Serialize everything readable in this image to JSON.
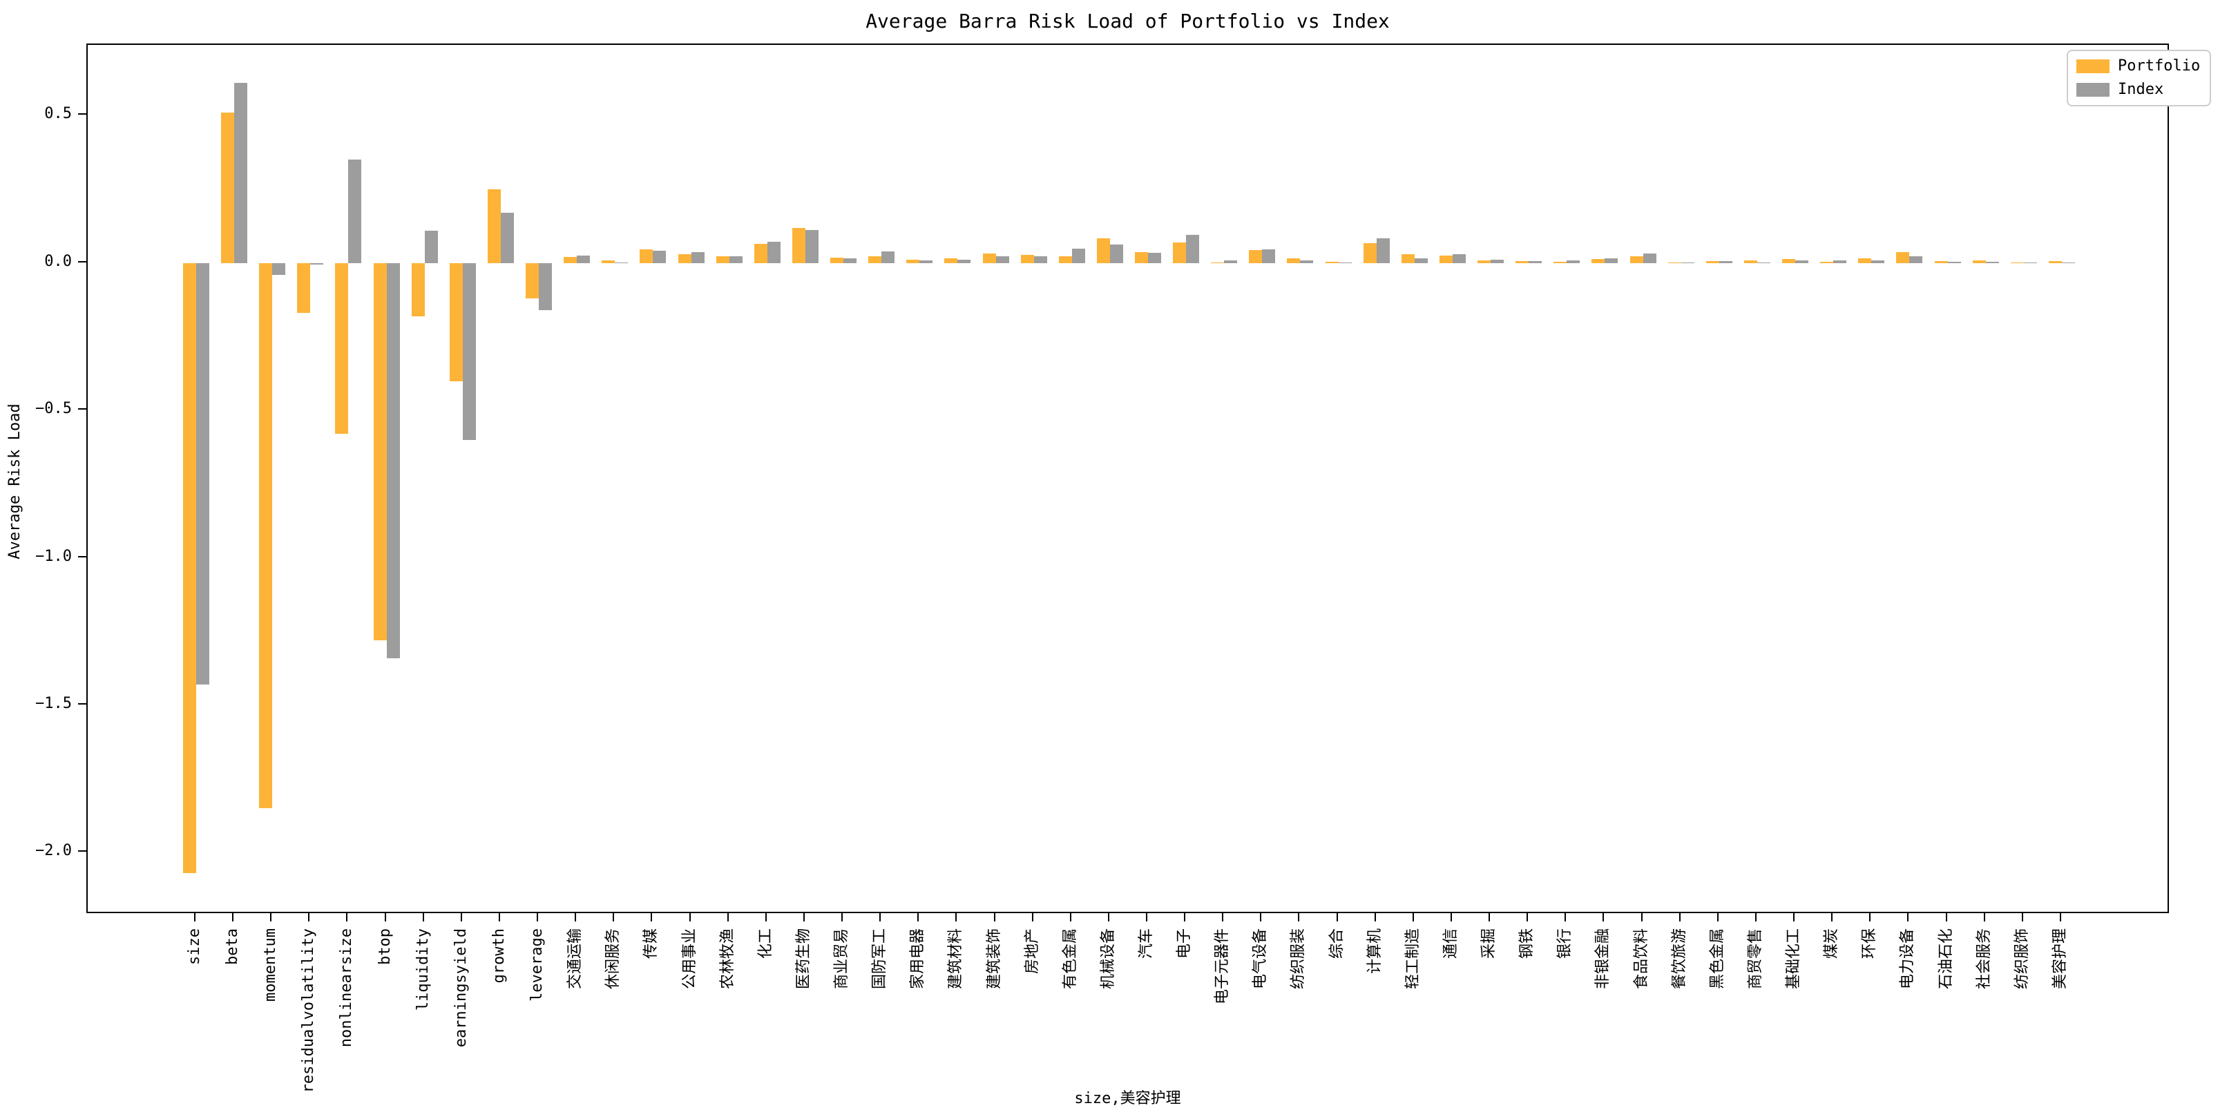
{
  "figure": {
    "title": "Average Barra Risk Load of Portfolio vs Index",
    "ylabel": "Average Risk Load",
    "xlabel": "size,美容护理"
  },
  "legend": {
    "items": [
      {
        "label": "Portfolio",
        "color": "#FDB338"
      },
      {
        "label": "Index",
        "color": "#9D9D9D"
      }
    ]
  },
  "chart_data": {
    "type": "bar",
    "title": "Average Barra Risk Load of Portfolio vs Index",
    "xlabel": "size,美容护理",
    "ylabel": "Average Risk Load",
    "legend_position": "upper right",
    "grid": false,
    "ylim": [
      -2.21,
      0.74
    ],
    "yticks": [
      0.5,
      0.0,
      -0.5,
      -1.0,
      -1.5,
      -2.0
    ],
    "categories": [
      "size",
      "beta",
      "momentum",
      "residualvolatility",
      "nonlinearsize",
      "btop",
      "liquidity",
      "earningsyield",
      "growth",
      "leverage",
      "交通运输",
      "休闲服务",
      "传媒",
      "公用事业",
      "农林牧渔",
      "化工",
      "医药生物",
      "商业贸易",
      "国防军工",
      "家用电器",
      "建筑材料",
      "建筑装饰",
      "房地产",
      "有色金属",
      "机械设备",
      "汽车",
      "电子",
      "电子元器件",
      "电气设备",
      "纺织服装",
      "综合",
      "计算机",
      "轻工制造",
      "通信",
      "采掘",
      "钢铁",
      "银行",
      "非银金融",
      "食品饮料",
      "餐饮旅游",
      "黑色金属",
      "商贸零售",
      "基础化工",
      "煤炭",
      "环保",
      "电力设备",
      "石油石化",
      "社会服务",
      "纺织服饰",
      "美容护理"
    ],
    "series": [
      {
        "name": "Portfolio",
        "color": "#FDB338",
        "values": [
          -2.07,
          0.51,
          -1.85,
          -0.17,
          -0.58,
          -1.28,
          -0.18,
          -0.4,
          0.25,
          -0.12,
          0.02,
          0.008,
          0.046,
          0.031,
          0.022,
          0.065,
          0.118,
          0.019,
          0.022,
          0.012,
          0.016,
          0.033,
          0.027,
          0.022,
          0.083,
          0.037,
          0.07,
          0.002,
          0.044,
          0.016,
          0.005,
          0.068,
          0.031,
          0.025,
          0.01,
          0.006,
          0.005,
          0.013,
          0.024,
          0.003,
          0.006,
          0.008,
          0.013,
          0.005,
          0.017,
          0.036,
          0.006,
          0.009,
          0.003,
          0.007
        ]
      },
      {
        "name": "Index",
        "color": "#9D9D9D",
        "values": [
          -1.43,
          0.61,
          -0.04,
          -0.005,
          0.35,
          -1.34,
          0.11,
          -0.6,
          0.17,
          -0.16,
          0.025,
          0.002,
          0.041,
          0.038,
          0.023,
          0.072,
          0.113,
          0.015,
          0.04,
          0.009,
          0.012,
          0.024,
          0.023,
          0.049,
          0.062,
          0.035,
          0.096,
          0.008,
          0.046,
          0.008,
          0.002,
          0.083,
          0.016,
          0.03,
          0.012,
          0.007,
          0.009,
          0.016,
          0.033,
          0.003,
          0.007,
          0.003,
          0.009,
          0.008,
          0.01,
          0.024,
          0.005,
          0.005,
          0.002,
          0.002
        ]
      }
    ]
  }
}
